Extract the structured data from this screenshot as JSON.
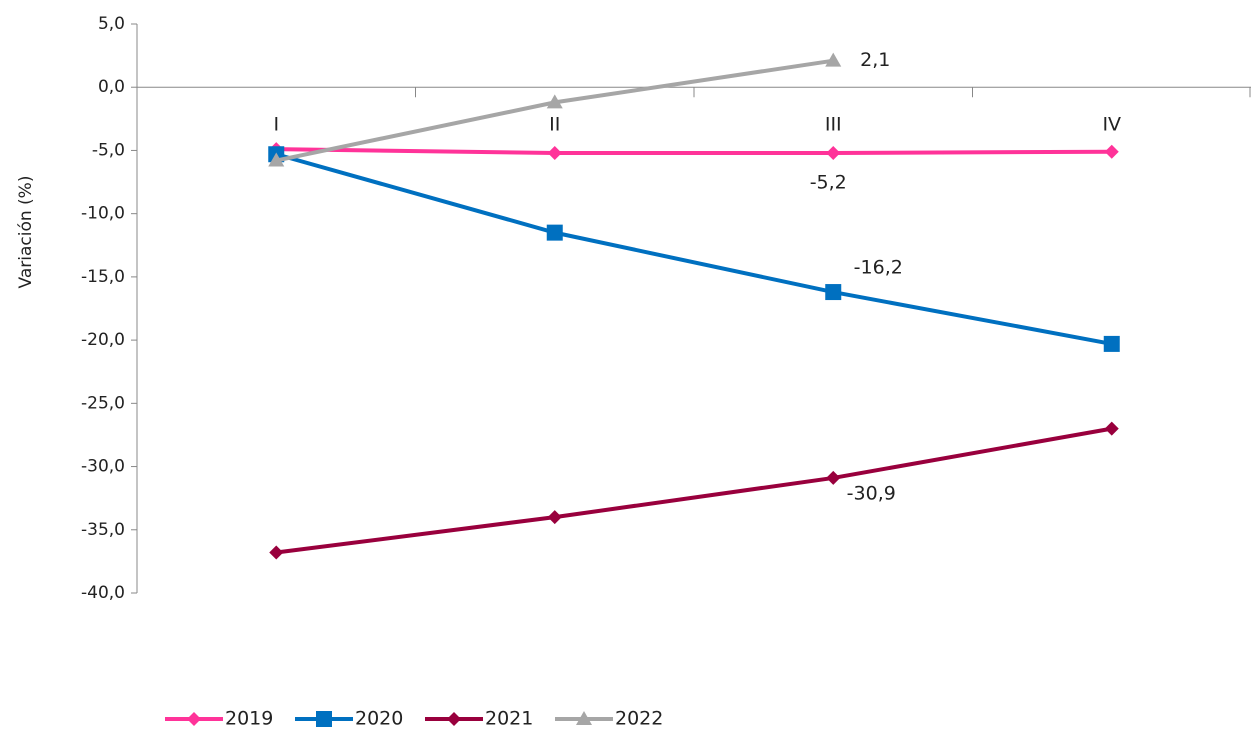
{
  "chart_data": {
    "type": "line",
    "y_label": "Variación (%)",
    "categories": [
      "I",
      "II",
      "III",
      "IV"
    ],
    "series": [
      {
        "name": "2019",
        "color": "#ff3399",
        "marker": "diamond",
        "values": [
          -4.9,
          -5.2,
          -5.2,
          -5.1
        ],
        "value_labels": [
          null,
          null,
          "-5,2",
          null
        ]
      },
      {
        "name": "2020",
        "color": "#0070c0",
        "marker": "square",
        "values": [
          -5.3,
          -11.5,
          -16.2,
          -20.3
        ],
        "value_labels": [
          null,
          null,
          "-16,2",
          null
        ]
      },
      {
        "name": "2021",
        "color": "#99003d",
        "marker": "diamond",
        "values": [
          -36.8,
          -34.0,
          -30.9,
          -27.0
        ],
        "value_labels": [
          null,
          null,
          "-30,9",
          null
        ]
      },
      {
        "name": "2022",
        "color": "#a6a6a6",
        "marker": "triangle",
        "values": [
          -5.8,
          -1.2,
          2.1,
          null
        ],
        "value_labels": [
          null,
          null,
          "2,1",
          null
        ]
      }
    ],
    "ylim": [
      -40,
      5
    ],
    "yticks": [
      {
        "value": -40,
        "label": "-40,0"
      },
      {
        "value": -35,
        "label": "-35,0"
      },
      {
        "value": -30,
        "label": "-30,0"
      },
      {
        "value": -25,
        "label": "-25,0"
      },
      {
        "value": -20,
        "label": "-20,0"
      },
      {
        "value": -15,
        "label": "-15,0"
      },
      {
        "value": -10,
        "label": "-10,0"
      },
      {
        "value": -5,
        "label": "-5,0"
      },
      {
        "value": 0,
        "label": "0,0"
      },
      {
        "value": 5,
        "label": "5,0"
      }
    ],
    "legend": "bottom-left"
  }
}
